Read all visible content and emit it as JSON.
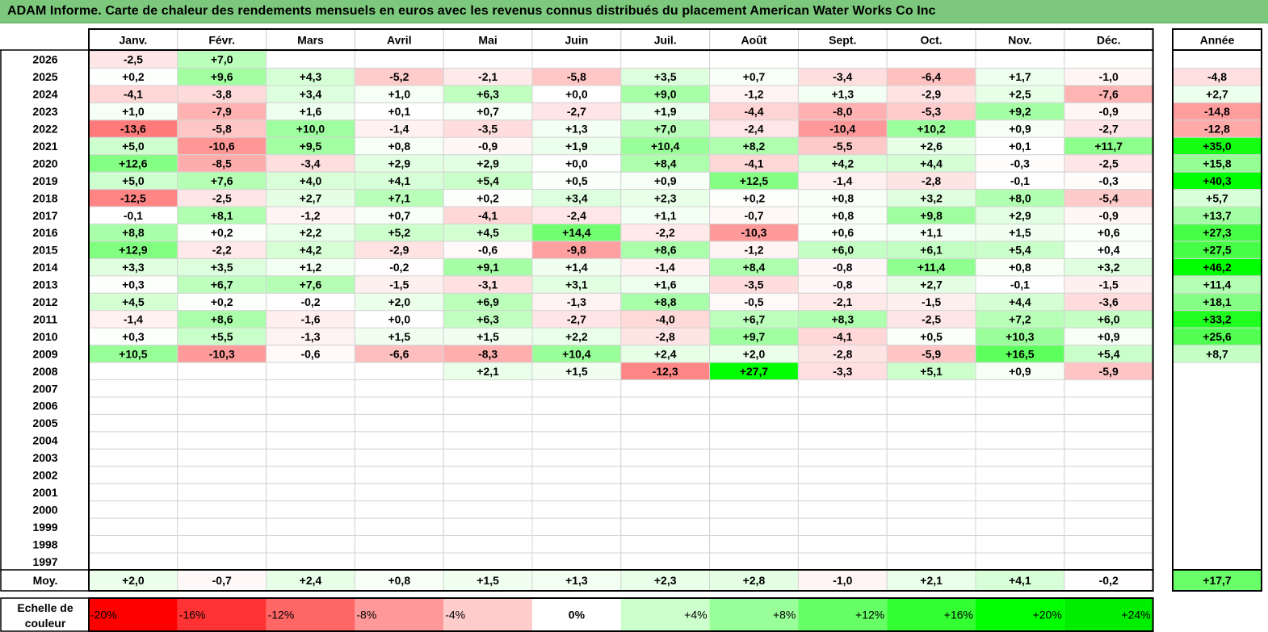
{
  "title": "ADAM Informe. Carte de chaleur des rendements mensuels en euros avec les revenus connus distribués du placement American Water Works Co Inc",
  "chart_data": {
    "type": "heatmap",
    "months": [
      "Janv.",
      "Févr.",
      "Mars",
      "Avril",
      "Mai",
      "Juin",
      "Juil.",
      "Août",
      "Sept.",
      "Oct.",
      "Nov.",
      "Déc."
    ],
    "year_header": "Année",
    "rows": [
      {
        "year": "2026",
        "months": [
          "-2,5",
          "+7,0",
          "",
          "",
          "",
          "",
          "",
          "",
          "",
          "",
          "",
          ""
        ],
        "total": ""
      },
      {
        "year": "2025",
        "months": [
          "+0,2",
          "+9,6",
          "+4,3",
          "-5,2",
          "-2,1",
          "-5,8",
          "+3,5",
          "+0,7",
          "-3,4",
          "-6,4",
          "+1,7",
          "-1,0"
        ],
        "total": "-4,8"
      },
      {
        "year": "2024",
        "months": [
          "-4,1",
          "-3,8",
          "+3,4",
          "+1,0",
          "+6,3",
          "+0,0",
          "+9,0",
          "-1,2",
          "+1,3",
          "-2,9",
          "+2,5",
          "-7,6"
        ],
        "total": "+2,7"
      },
      {
        "year": "2023",
        "months": [
          "+1,0",
          "-7,9",
          "+1,6",
          "+0,1",
          "+0,7",
          "-2,7",
          "+1,9",
          "-4,4",
          "-8,0",
          "-5,3",
          "+9,2",
          "-0,9"
        ],
        "total": "-14,8"
      },
      {
        "year": "2022",
        "months": [
          "-13,6",
          "-5,8",
          "+10,0",
          "-1,4",
          "-3,5",
          "+1,3",
          "+7,0",
          "-2,4",
          "-10,4",
          "+10,2",
          "+0,9",
          "-2,7"
        ],
        "total": "-12,8"
      },
      {
        "year": "2021",
        "months": [
          "+5,0",
          "-10,6",
          "+9,5",
          "+0,8",
          "-0,9",
          "+1,9",
          "+10,4",
          "+8,2",
          "-5,5",
          "+2,6",
          "+0,1",
          "+11,7"
        ],
        "total": "+35,0"
      },
      {
        "year": "2020",
        "months": [
          "+12,6",
          "-8,5",
          "-3,4",
          "+2,9",
          "+2,9",
          "+0,0",
          "+8,4",
          "-4,1",
          "+4,2",
          "+4,4",
          "-0,3",
          "-2,5"
        ],
        "total": "+15,8"
      },
      {
        "year": "2019",
        "months": [
          "+5,0",
          "+7,6",
          "+4,0",
          "+4,1",
          "+5,4",
          "+0,5",
          "+0,9",
          "+12,5",
          "-1,4",
          "-2,8",
          "-0,1",
          "-0,3"
        ],
        "total": "+40,3"
      },
      {
        "year": "2018",
        "months": [
          "-12,5",
          "-2,5",
          "+2,7",
          "+7,1",
          "+0,2",
          "+3,4",
          "+2,3",
          "+0,2",
          "+0,8",
          "+3,2",
          "+8,0",
          "-5,4"
        ],
        "total": "+5,7"
      },
      {
        "year": "2017",
        "months": [
          "-0,1",
          "+8,1",
          "-1,2",
          "+0,7",
          "-4,1",
          "-2,4",
          "+1,1",
          "-0,7",
          "+0,8",
          "+9,8",
          "+2,9",
          "-0,9"
        ],
        "total": "+13,7"
      },
      {
        "year": "2016",
        "months": [
          "+8,8",
          "+0,2",
          "+2,2",
          "+5,2",
          "+4,5",
          "+14,4",
          "-2,2",
          "-10,3",
          "+0,6",
          "+1,1",
          "+1,5",
          "+0,6"
        ],
        "total": "+27,3"
      },
      {
        "year": "2015",
        "months": [
          "+12,9",
          "-2,2",
          "+4,2",
          "-2,9",
          "-0,6",
          "-9,8",
          "+8,6",
          "-1,2",
          "+6,0",
          "+6,1",
          "+5,4",
          "+0,4"
        ],
        "total": "+27,5"
      },
      {
        "year": "2014",
        "months": [
          "+3,3",
          "+3,5",
          "+1,2",
          "-0,2",
          "+9,1",
          "+1,4",
          "-1,4",
          "+8,4",
          "-0,8",
          "+11,4",
          "+0,8",
          "+3,2"
        ],
        "total": "+46,2"
      },
      {
        "year": "2013",
        "months": [
          "+0,3",
          "+6,7",
          "+7,6",
          "-1,5",
          "-3,1",
          "+3,1",
          "+1,6",
          "-3,5",
          "-0,8",
          "+2,7",
          "-0,1",
          "-1,5"
        ],
        "total": "+11,4"
      },
      {
        "year": "2012",
        "months": [
          "+4,5",
          "+0,2",
          "-0,2",
          "+2,0",
          "+6,9",
          "-1,3",
          "+8,8",
          "-0,5",
          "-2,1",
          "-1,5",
          "+4,4",
          "-3,6"
        ],
        "total": "+18,1"
      },
      {
        "year": "2011",
        "months": [
          "-1,4",
          "+8,6",
          "-1,6",
          "+0,0",
          "+6,3",
          "-2,7",
          "-4,0",
          "+6,7",
          "+8,3",
          "-2,5",
          "+7,2",
          "+6,0"
        ],
        "total": "+33,2"
      },
      {
        "year": "2010",
        "months": [
          "+0,3",
          "+5,5",
          "-1,3",
          "+1,5",
          "+1,5",
          "+2,2",
          "-2,8",
          "+9,7",
          "-4,1",
          "+0,5",
          "+10,3",
          "+0,9"
        ],
        "total": "+25,6"
      },
      {
        "year": "2009",
        "months": [
          "+10,5",
          "-10,3",
          "-0,6",
          "-6,6",
          "-8,3",
          "+10,4",
          "+2,4",
          "+2,0",
          "-2,8",
          "-5,9",
          "+16,5",
          "+5,4"
        ],
        "total": "+8,7"
      },
      {
        "year": "2008",
        "months": [
          "",
          "",
          "",
          "",
          "+2,1",
          "+1,5",
          "-12,3",
          "+27,7",
          "-3,3",
          "+5,1",
          "+0,9",
          "-5,9"
        ],
        "total": ""
      },
      {
        "year": "2007",
        "months": [
          "",
          "",
          "",
          "",
          "",
          "",
          "",
          "",
          "",
          "",
          "",
          ""
        ],
        "total": ""
      },
      {
        "year": "2006",
        "months": [
          "",
          "",
          "",
          "",
          "",
          "",
          "",
          "",
          "",
          "",
          "",
          ""
        ],
        "total": ""
      },
      {
        "year": "2005",
        "months": [
          "",
          "",
          "",
          "",
          "",
          "",
          "",
          "",
          "",
          "",
          "",
          ""
        ],
        "total": ""
      },
      {
        "year": "2004",
        "months": [
          "",
          "",
          "",
          "",
          "",
          "",
          "",
          "",
          "",
          "",
          "",
          ""
        ],
        "total": ""
      },
      {
        "year": "2003",
        "months": [
          "",
          "",
          "",
          "",
          "",
          "",
          "",
          "",
          "",
          "",
          "",
          ""
        ],
        "total": ""
      },
      {
        "year": "2002",
        "months": [
          "",
          "",
          "",
          "",
          "",
          "",
          "",
          "",
          "",
          "",
          "",
          ""
        ],
        "total": ""
      },
      {
        "year": "2001",
        "months": [
          "",
          "",
          "",
          "",
          "",
          "",
          "",
          "",
          "",
          "",
          "",
          ""
        ],
        "total": ""
      },
      {
        "year": "2000",
        "months": [
          "",
          "",
          "",
          "",
          "",
          "",
          "",
          "",
          "",
          "",
          "",
          ""
        ],
        "total": ""
      },
      {
        "year": "1999",
        "months": [
          "",
          "",
          "",
          "",
          "",
          "",
          "",
          "",
          "",
          "",
          "",
          ""
        ],
        "total": ""
      },
      {
        "year": "1998",
        "months": [
          "",
          "",
          "",
          "",
          "",
          "",
          "",
          "",
          "",
          "",
          "",
          ""
        ],
        "total": ""
      },
      {
        "year": "1997",
        "months": [
          "",
          "",
          "",
          "",
          "",
          "",
          "",
          "",
          "",
          "",
          "",
          ""
        ],
        "total": ""
      }
    ],
    "average": {
      "label": "Moy.",
      "months": [
        "+2,0",
        "-0,7",
        "+2,4",
        "+0,8",
        "+1,5",
        "+1,3",
        "+2,3",
        "+2,8",
        "-1,0",
        "+2,1",
        "+4,1",
        "-0,2"
      ],
      "total": "+17,7"
    },
    "scale": {
      "label_lines": [
        "Echelle de",
        "couleur"
      ],
      "stops": [
        {
          "label": "-20%",
          "value": -20,
          "color": "#ff0000"
        },
        {
          "label": "-16%",
          "value": -16,
          "color": "#ff3333"
        },
        {
          "label": "-12%",
          "value": -12,
          "color": "#ff6666"
        },
        {
          "label": "-8%",
          "value": -8,
          "color": "#ff9999"
        },
        {
          "label": "-4%",
          "value": -4,
          "color": "#ffcccc"
        },
        {
          "label": "0%",
          "value": 0,
          "color": "#ffffff"
        },
        {
          "label": "+4%",
          "value": 4,
          "color": "#ccffcc"
        },
        {
          "label": "+8%",
          "value": 8,
          "color": "#99ff99"
        },
        {
          "label": "+12%",
          "value": 12,
          "color": "#66ff66"
        },
        {
          "label": "+16%",
          "value": 16,
          "color": "#33ff33"
        },
        {
          "label": "+20%",
          "value": 20,
          "color": "#00ff00"
        },
        {
          "label": "+24%",
          "value": 24,
          "color": "#00ee00"
        }
      ]
    }
  }
}
